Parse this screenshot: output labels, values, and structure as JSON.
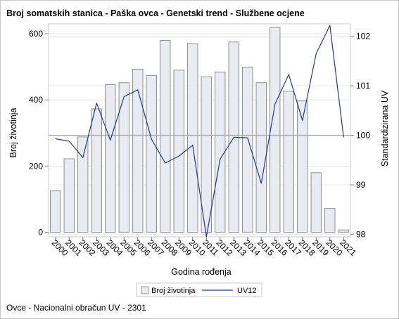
{
  "chart_data": {
    "type": "bar",
    "title": "Broj somatskih stanica - Paška ovca - Genetski trend - Službene ocjene",
    "xlabel": "Godina rođenja",
    "ylabel": "Broj životinja",
    "y2label": "Standardizirana UV",
    "categories": [
      "2000",
      "2001",
      "2002",
      "2003",
      "2004",
      "2005",
      "2006",
      "2007",
      "2008",
      "2009",
      "2010",
      "2011",
      "2012",
      "2013",
      "2014",
      "2015",
      "2016",
      "2017",
      "2018",
      "2019",
      "2020",
      "2021"
    ],
    "ylim": [
      0,
      640
    ],
    "yticks": [
      0,
      200,
      400,
      600
    ],
    "y2lim": [
      97.95,
      102.25
    ],
    "y2ticks": [
      98,
      99,
      100,
      101,
      102
    ],
    "y2_reference": 100,
    "series": [
      {
        "name": "Broj životinja",
        "type": "bar",
        "axis": "left",
        "color": "#e8ebf2",
        "edge_color": "#8f8f8f",
        "values": [
          125,
          222,
          288,
          373,
          446,
          452,
          493,
          474,
          580,
          490,
          570,
          470,
          484,
          575,
          499,
          452,
          619,
          426,
          397,
          180,
          72,
          7
        ]
      },
      {
        "name": "UV12",
        "type": "line",
        "axis": "right",
        "color": "#1f3a93",
        "values": [
          99.93,
          99.88,
          99.55,
          100.65,
          99.9,
          100.78,
          100.92,
          99.92,
          99.44,
          99.58,
          99.8,
          97.95,
          99.52,
          99.96,
          99.95,
          99.03,
          100.63,
          101.23,
          100.3,
          101.65,
          102.22,
          99.96
        ]
      }
    ],
    "grid": true,
    "legend_position": "bottom-center"
  },
  "footnote": "Ovce - Nacionalni obračun UV - 2301"
}
